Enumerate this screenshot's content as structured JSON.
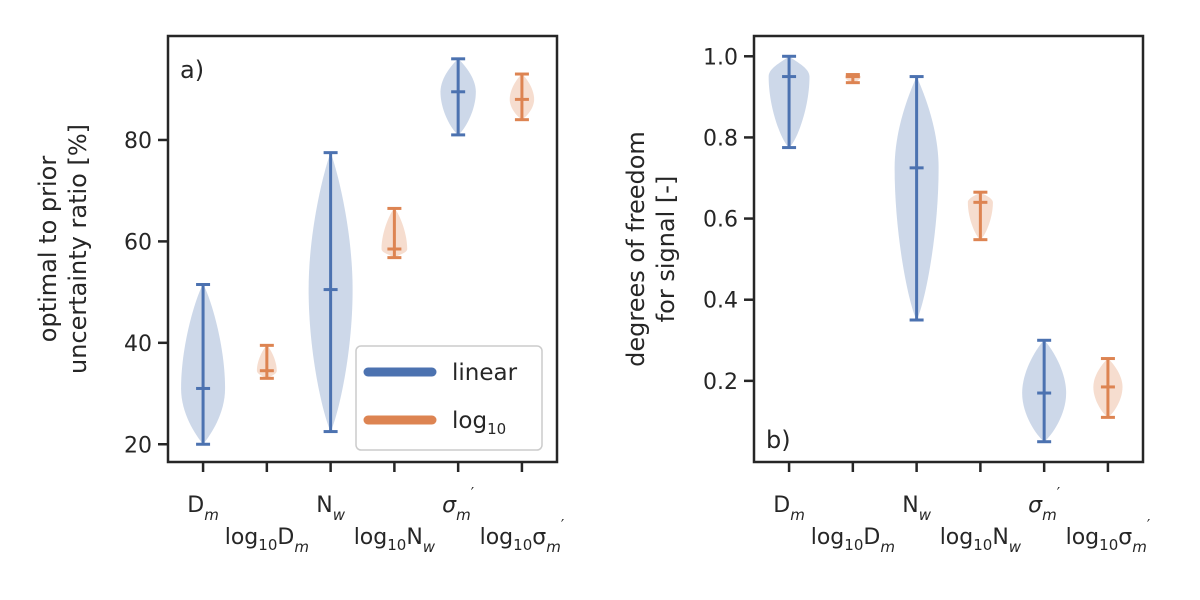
{
  "colors": {
    "linear": "#4c72b0",
    "log10": "#dd8452",
    "axis": "#262626"
  },
  "panels": [
    {
      "panel_label": "a)",
      "ylabel_lines": [
        "optimal to prior",
        "uncertainty ratio [%]"
      ]
    },
    {
      "panel_label": "b)",
      "ylabel_lines": [
        "degrees of freedom",
        "for signal [-]"
      ]
    }
  ],
  "xticklabels": [
    {
      "prefix": "",
      "main": "D",
      "sub": "m",
      "italic": false
    },
    {
      "prefix": "log10",
      "main": "D",
      "sub": "m",
      "italic": false
    },
    {
      "prefix": "",
      "main": "N",
      "sub": "w",
      "italic": false
    },
    {
      "prefix": "log10",
      "main": "N",
      "sub": "w",
      "italic": false
    },
    {
      "prefix": "",
      "main": "σ",
      "sub": "m",
      "italic": true,
      "prime": true
    },
    {
      "prefix": "log10",
      "main": "σ",
      "sub": "m",
      "italic": true,
      "prime": true
    }
  ],
  "legend": {
    "placement": "lower-right",
    "entries": [
      {
        "name": "linear",
        "color_key": "linear"
      },
      {
        "name": "log",
        "sub": "10",
        "color_key": "log10"
      }
    ]
  },
  "chart_data": [
    {
      "type": "violin",
      "title": "",
      "ylim": [
        16.5,
        100.5
      ],
      "yticks": [
        20,
        40,
        60,
        80
      ],
      "grid": false,
      "categories": [
        "D_m",
        "log10 D_m",
        "N_w",
        "log10 N_w",
        "sigma_m'",
        "log10 sigma_m'"
      ],
      "series": [
        {
          "name": "linear",
          "positions": [
            1,
            3,
            5
          ],
          "min": [
            20,
            22.5,
            81
          ],
          "median": [
            31,
            50.5,
            89.5
          ],
          "max": [
            51.5,
            77.5,
            96
          ]
        },
        {
          "name": "log10",
          "positions": [
            2,
            4,
            6
          ],
          "min": [
            33,
            56.8,
            84
          ],
          "median": [
            34.5,
            58.5,
            88
          ],
          "max": [
            39.5,
            66.5,
            93
          ]
        }
      ]
    },
    {
      "type": "violin",
      "title": "",
      "ylim": [
        0,
        1.05
      ],
      "yticks": [
        0.2,
        0.4,
        0.6,
        0.8,
        1.0
      ],
      "grid": false,
      "categories": [
        "D_m",
        "log10 D_m",
        "N_w",
        "log10 N_w",
        "sigma_m'",
        "log10 sigma_m'"
      ],
      "series": [
        {
          "name": "linear",
          "positions": [
            1,
            3,
            5
          ],
          "min": [
            0.775,
            0.35,
            0.05
          ],
          "median": [
            0.95,
            0.725,
            0.17
          ],
          "max": [
            1.0,
            0.95,
            0.3
          ]
        },
        {
          "name": "log10",
          "positions": [
            2,
            4,
            6
          ],
          "min": [
            0.935,
            0.548,
            0.11
          ],
          "median": [
            0.95,
            0.64,
            0.185
          ],
          "max": [
            0.955,
            0.665,
            0.255
          ]
        }
      ]
    }
  ]
}
